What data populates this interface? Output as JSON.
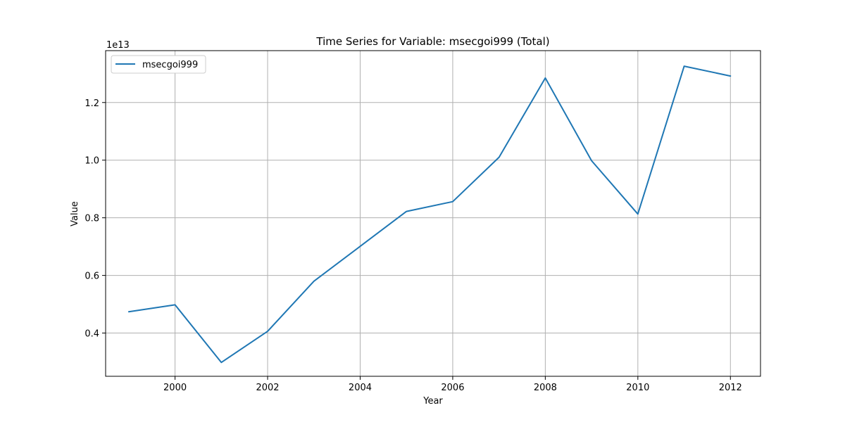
{
  "chart_data": {
    "type": "line",
    "title": "Time Series for Variable: msecgoi999 (Total)",
    "xlabel": "Year",
    "ylabel": "Value",
    "y_offset_label": "1e13",
    "y_scale": 10000000000000.0,
    "xlim": [
      1998.5,
      2012.65
    ],
    "ylim": [
      0.25,
      1.38
    ],
    "x_ticks": [
      2000,
      2002,
      2004,
      2006,
      2008,
      2010,
      2012
    ],
    "x_tick_labels": [
      "2000",
      "2002",
      "2004",
      "2006",
      "2008",
      "2010",
      "2012"
    ],
    "y_ticks": [
      0.4,
      0.6,
      0.8,
      1.0,
      1.2
    ],
    "y_tick_labels": [
      "0.4",
      "0.6",
      "0.8",
      "1.0",
      "1.2"
    ],
    "grid": true,
    "legend_position": "top-left",
    "series": [
      {
        "name": "msecgoi999",
        "color": "#1f77b4",
        "x": [
          1999,
          2000,
          2001,
          2002,
          2003,
          2004,
          2005,
          2006,
          2007,
          2008,
          2009,
          2010,
          2011,
          2012
        ],
        "values": [
          0.474,
          0.498,
          0.298,
          0.406,
          0.58,
          0.701,
          0.822,
          0.856,
          1.01,
          1.285,
          0.998,
          0.813,
          1.326,
          1.292
        ]
      }
    ]
  }
}
